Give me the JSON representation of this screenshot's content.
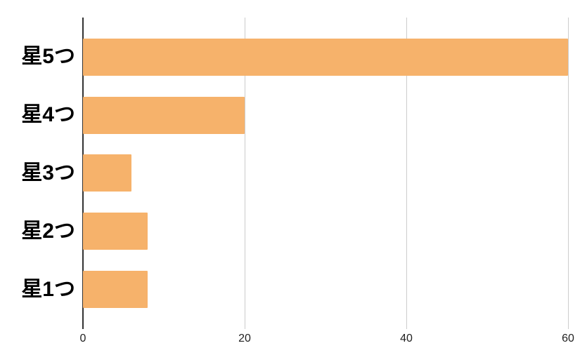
{
  "chart_data": {
    "type": "bar",
    "orientation": "horizontal",
    "title": "",
    "xlabel": "",
    "ylabel": "",
    "categories": [
      "星5つ",
      "星4つ",
      "星3つ",
      "星2つ",
      "星1つ"
    ],
    "values": [
      60,
      20,
      6,
      8,
      8
    ],
    "xticks": [
      0,
      20,
      40,
      60
    ],
    "xlim": [
      0,
      61.3
    ],
    "grid": true,
    "legend": false,
    "colors": {
      "bar": "#F6B26B",
      "axis_line": "#333333",
      "gridline": "#CCCCCC",
      "tick_label": "#222222",
      "category_label": "#000000",
      "background": "#FFFFFF"
    }
  }
}
